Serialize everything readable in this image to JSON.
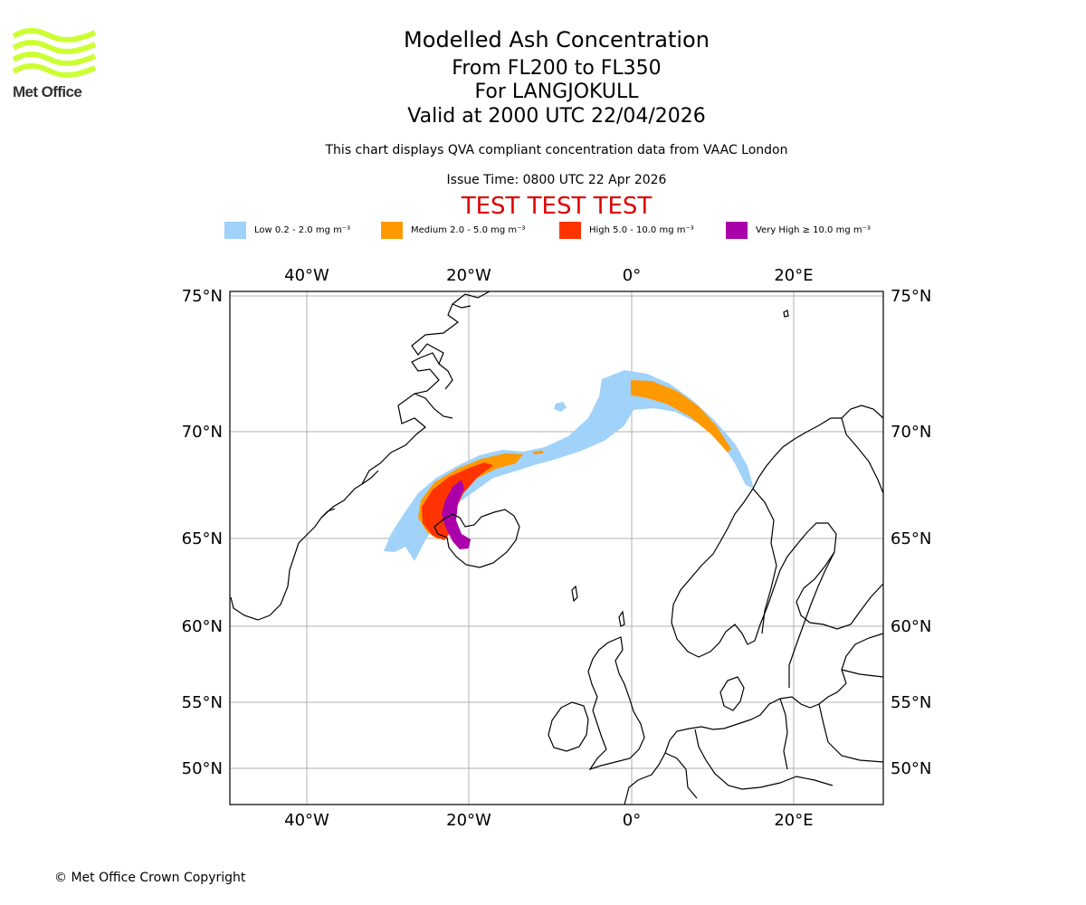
{
  "logo": {
    "text": "Met Office",
    "color": "#ccff33"
  },
  "header": {
    "title": "Modelled Ash Concentration",
    "flight_levels": "From FL200 to FL350",
    "volcano": "For LANGJOKULL",
    "valid": "Valid at 2000 UTC 22/04/2026",
    "subtitle": "This chart displays QVA compliant concentration data from VAAC London",
    "issue": "Issue Time: 0800 UTC 22 Apr 2026",
    "test_banner": "TEST TEST TEST",
    "test_color": "#dd0000"
  },
  "legend": [
    {
      "label": "Low 0.2 - 2.0 mg m⁻³",
      "color": "#a0d2fa"
    },
    {
      "label": "Medium 2.0 - 5.0 mg m⁻³",
      "color": "#ff9900"
    },
    {
      "label": "High 5.0 - 10.0 mg m⁻³",
      "color": "#ff3300"
    },
    {
      "label": "Very High  ≥  10.0 mg m⁻³",
      "color": "#aa00aa"
    }
  ],
  "map": {
    "lon_labels": [
      "40°W",
      "20°W",
      "0°",
      "20°E"
    ],
    "lat_labels": [
      "75°N",
      "70°N",
      "65°N",
      "60°N",
      "55°N",
      "50°N"
    ],
    "grid": true
  },
  "footer": {
    "copyright": "© Met Office Crown Copyright"
  }
}
